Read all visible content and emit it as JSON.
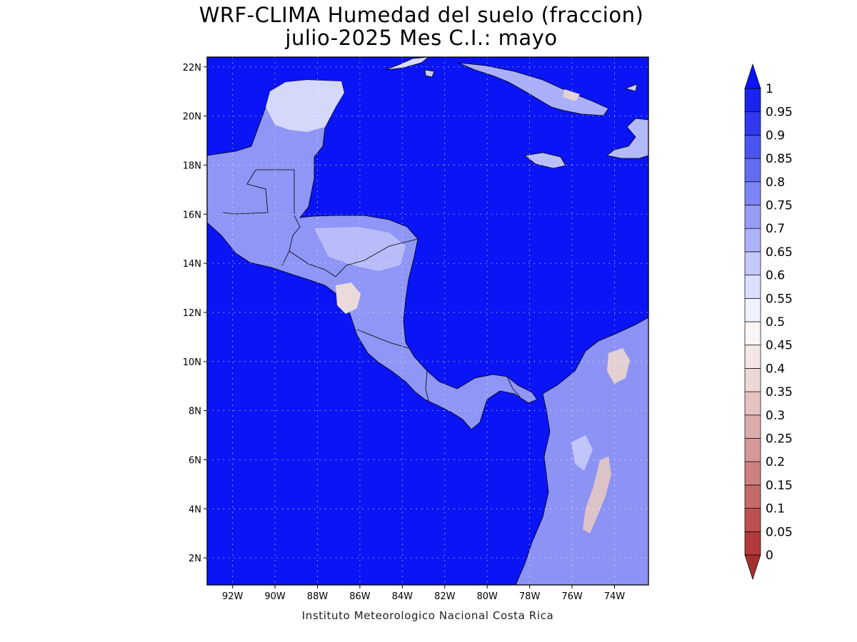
{
  "title": {
    "line1": "WRF-CLIMA Humedad del suelo (fraccion)",
    "line2": "julio-2025 Mes C.I.: mayo"
  },
  "credit": "Instituto Meteorologico Nacional Costa Rica",
  "map": {
    "lon_range": [
      -93.2,
      -72.4
    ],
    "lat_range": [
      0.9,
      22.4
    ],
    "lat_ticks": [
      "2N",
      "4N",
      "6N",
      "8N",
      "10N",
      "12N",
      "14N",
      "16N",
      "18N",
      "20N",
      "22N"
    ],
    "lon_ticks": [
      "92W",
      "90W",
      "88W",
      "86W",
      "84W",
      "82W",
      "80W",
      "78W",
      "76W",
      "74W"
    ],
    "ocean_color": "#0a14f5",
    "gridlines": true
  },
  "colorbar": {
    "labels": [
      "0",
      "0.05",
      "0.1",
      "0.15",
      "0.2",
      "0.25",
      "0.3",
      "0.35",
      "0.4",
      "0.45",
      "0.5",
      "0.55",
      "0.6",
      "0.65",
      "0.7",
      "0.75",
      "0.8",
      "0.85",
      "0.9",
      "0.95",
      "1"
    ],
    "colors": [
      "#b33a3a",
      "#bd5151",
      "#c56a6a",
      "#cd8181",
      "#d59797",
      "#ddadad",
      "#e5c3c3",
      "#edd8d8",
      "#f3e6e6",
      "#fbf5f5",
      "#f0f2ff",
      "#dcdffd",
      "#c4c8fb",
      "#aeb3f9",
      "#969df7",
      "#7d86f5",
      "#636cf3",
      "#4a54f1",
      "#3039f0",
      "#1a23ef",
      "#0a14f5"
    ],
    "arrow_low_color": "#a03030",
    "arrow_high_color": "#0a14f5"
  }
}
